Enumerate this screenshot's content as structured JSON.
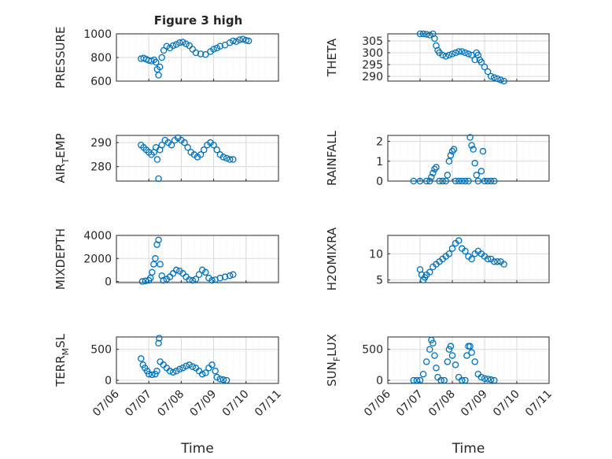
{
  "figure_title": "Figure 3 high",
  "colors": {
    "marker": "#0072BD",
    "axis": "#262626",
    "grid": "#d9d9d9",
    "minor_grid": "#ebebeb"
  },
  "chart_data": [
    {
      "type": "scatter",
      "ylabel": "PRESSURE",
      "ylim": [
        600,
        1000
      ],
      "yticks": [
        "600",
        "800",
        "1000"
      ],
      "xlim": [
        "07/06",
        "07/11"
      ],
      "xticks": [
        "07/06",
        "07/07",
        "07/08",
        "07/09",
        "07/10",
        "07/11"
      ],
      "grid": true,
      "xlabel": "",
      "points": [
        [
          0.76,
          790
        ],
        [
          0.84,
          795
        ],
        [
          0.92,
          785
        ],
        [
          1.0,
          775
        ],
        [
          1.08,
          770
        ],
        [
          1.16,
          780
        ],
        [
          1.22,
          760
        ],
        [
          1.26,
          700
        ],
        [
          1.3,
          650
        ],
        [
          1.34,
          720
        ],
        [
          1.4,
          800
        ],
        [
          1.46,
          860
        ],
        [
          1.55,
          895
        ],
        [
          1.65,
          880
        ],
        [
          1.75,
          900
        ],
        [
          1.85,
          910
        ],
        [
          1.95,
          925
        ],
        [
          2.05,
          930
        ],
        [
          2.15,
          915
        ],
        [
          2.25,
          900
        ],
        [
          2.35,
          870
        ],
        [
          2.45,
          840
        ],
        [
          2.6,
          830
        ],
        [
          2.75,
          825
        ],
        [
          2.9,
          850
        ],
        [
          3.0,
          870
        ],
        [
          3.1,
          880
        ],
        [
          3.2,
          895
        ],
        [
          3.35,
          905
        ],
        [
          3.5,
          925
        ],
        [
          3.6,
          940
        ],
        [
          3.7,
          935
        ],
        [
          3.8,
          950
        ],
        [
          3.9,
          955
        ],
        [
          4.0,
          945
        ],
        [
          4.08,
          940
        ]
      ]
    },
    {
      "type": "scatter",
      "ylabel": "THETA",
      "ylim": [
        288,
        308
      ],
      "yticks": [
        "290",
        "295",
        "300",
        "305"
      ],
      "xlim": [
        "07/06",
        "07/11"
      ],
      "xticks": [
        "07/06",
        "07/07",
        "07/08",
        "07/09",
        "07/10",
        "07/11"
      ],
      "grid": true,
      "xlabel": "",
      "points": [
        [
          1.0,
          308
        ],
        [
          1.1,
          308
        ],
        [
          1.2,
          307.8
        ],
        [
          1.3,
          307.5
        ],
        [
          1.4,
          308
        ],
        [
          1.45,
          306
        ],
        [
          1.5,
          303
        ],
        [
          1.55,
          301
        ],
        [
          1.6,
          300
        ],
        [
          1.7,
          299
        ],
        [
          1.8,
          298.5
        ],
        [
          1.9,
          299
        ],
        [
          2.0,
          299.5
        ],
        [
          2.1,
          300
        ],
        [
          2.2,
          300.5
        ],
        [
          2.3,
          300.5
        ],
        [
          2.4,
          300
        ],
        [
          2.5,
          299.5
        ],
        [
          2.6,
          299
        ],
        [
          2.7,
          297
        ],
        [
          2.75,
          300
        ],
        [
          2.8,
          299
        ],
        [
          2.85,
          297
        ],
        [
          2.9,
          296
        ],
        [
          3.0,
          294
        ],
        [
          3.1,
          292
        ],
        [
          3.2,
          290
        ],
        [
          3.3,
          289.5
        ],
        [
          3.4,
          289
        ],
        [
          3.5,
          288.5
        ],
        [
          3.6,
          288
        ]
      ]
    },
    {
      "type": "scatter",
      "ylabel": "AIR_TEMP",
      "ylim": [
        274,
        293
      ],
      "yticks": [
        "280",
        "290"
      ],
      "xlim": [
        "07/06",
        "07/11"
      ],
      "xticks": [
        "07/06",
        "07/07",
        "07/08",
        "07/09",
        "07/10",
        "07/11"
      ],
      "grid": true,
      "xlabel": "",
      "points": [
        [
          0.76,
          289
        ],
        [
          0.84,
          288
        ],
        [
          0.92,
          287
        ],
        [
          1.0,
          286
        ],
        [
          1.08,
          285
        ],
        [
          1.16,
          286
        ],
        [
          1.22,
          288
        ],
        [
          1.26,
          283
        ],
        [
          1.3,
          275
        ],
        [
          1.34,
          287
        ],
        [
          1.4,
          289
        ],
        [
          1.5,
          291
        ],
        [
          1.6,
          290
        ],
        [
          1.7,
          289
        ],
        [
          1.8,
          291
        ],
        [
          1.9,
          292
        ],
        [
          2.0,
          291
        ],
        [
          2.1,
          290
        ],
        [
          2.2,
          288
        ],
        [
          2.3,
          286
        ],
        [
          2.4,
          285
        ],
        [
          2.5,
          284
        ],
        [
          2.6,
          285
        ],
        [
          2.7,
          287
        ],
        [
          2.8,
          289
        ],
        [
          2.9,
          290
        ],
        [
          3.0,
          289
        ],
        [
          3.1,
          287
        ],
        [
          3.2,
          285
        ],
        [
          3.3,
          284
        ],
        [
          3.4,
          283.5
        ],
        [
          3.5,
          283
        ],
        [
          3.6,
          283
        ]
      ]
    },
    {
      "type": "scatter",
      "ylabel": "RAINFALL",
      "ylim": [
        0,
        2.3
      ],
      "yticks": [
        "0",
        "1",
        "2"
      ],
      "xlim": [
        "07/06",
        "07/11"
      ],
      "xticks": [
        "07/06",
        "07/07",
        "07/08",
        "07/09",
        "07/10",
        "07/11"
      ],
      "grid": true,
      "xlabel": "",
      "points": [
        [
          0.8,
          0
        ],
        [
          1.0,
          0
        ],
        [
          1.2,
          0
        ],
        [
          1.3,
          0
        ],
        [
          1.35,
          0.2
        ],
        [
          1.4,
          0.4
        ],
        [
          1.45,
          0.6
        ],
        [
          1.5,
          0.7
        ],
        [
          1.6,
          0
        ],
        [
          1.7,
          0
        ],
        [
          1.8,
          0
        ],
        [
          1.85,
          0.3
        ],
        [
          1.9,
          1.0
        ],
        [
          1.95,
          1.3
        ],
        [
          2.0,
          1.5
        ],
        [
          2.05,
          1.6
        ],
        [
          2.1,
          0
        ],
        [
          2.2,
          0
        ],
        [
          2.3,
          0
        ],
        [
          2.4,
          0
        ],
        [
          2.5,
          0
        ],
        [
          2.55,
          2.2
        ],
        [
          2.6,
          1.8
        ],
        [
          2.65,
          1.6
        ],
        [
          2.7,
          0.9
        ],
        [
          2.75,
          0.3
        ],
        [
          2.8,
          0
        ],
        [
          2.9,
          0.5
        ],
        [
          2.95,
          1.5
        ],
        [
          3.0,
          0
        ],
        [
          3.1,
          0
        ],
        [
          3.2,
          0
        ],
        [
          3.3,
          0
        ]
      ]
    },
    {
      "type": "scatter",
      "ylabel": "MIXDEPTH",
      "ylim": [
        -100,
        4000
      ],
      "yticks": [
        "0",
        "2000",
        "4000"
      ],
      "xlim": [
        "07/06",
        "07/11"
      ],
      "xticks": [
        "07/06",
        "07/07",
        "07/08",
        "07/09",
        "07/10",
        "07/11"
      ],
      "grid": true,
      "xlabel": "",
      "points": [
        [
          0.8,
          0
        ],
        [
          0.9,
          50
        ],
        [
          1.0,
          100
        ],
        [
          1.05,
          300
        ],
        [
          1.1,
          800
        ],
        [
          1.15,
          1500
        ],
        [
          1.2,
          2000
        ],
        [
          1.25,
          3200
        ],
        [
          1.3,
          3600
        ],
        [
          1.35,
          1500
        ],
        [
          1.4,
          500
        ],
        [
          1.45,
          100
        ],
        [
          1.55,
          200
        ],
        [
          1.65,
          400
        ],
        [
          1.75,
          700
        ],
        [
          1.85,
          1000
        ],
        [
          1.95,
          900
        ],
        [
          2.05,
          700
        ],
        [
          2.15,
          400
        ],
        [
          2.25,
          150
        ],
        [
          2.35,
          100
        ],
        [
          2.45,
          200
        ],
        [
          2.55,
          600
        ],
        [
          2.65,
          1000
        ],
        [
          2.75,
          800
        ],
        [
          2.85,
          300
        ],
        [
          2.95,
          100
        ],
        [
          3.05,
          150
        ],
        [
          3.2,
          300
        ],
        [
          3.35,
          400
        ],
        [
          3.5,
          500
        ],
        [
          3.6,
          600
        ]
      ]
    },
    {
      "type": "scatter",
      "ylabel": "H2OMIXRA",
      "ylim": [
        4.5,
        13.5
      ],
      "yticks": [
        "5",
        "10"
      ],
      "xlim": [
        "07/06",
        "07/11"
      ],
      "xticks": [
        "07/06",
        "07/07",
        "07/08",
        "07/09",
        "07/10",
        "07/11"
      ],
      "grid": true,
      "xlabel": "",
      "points": [
        [
          1.0,
          7
        ],
        [
          1.05,
          6
        ],
        [
          1.1,
          5
        ],
        [
          1.15,
          5.5
        ],
        [
          1.2,
          6
        ],
        [
          1.3,
          6.5
        ],
        [
          1.4,
          7.5
        ],
        [
          1.5,
          8
        ],
        [
          1.6,
          8.5
        ],
        [
          1.7,
          9
        ],
        [
          1.8,
          9.5
        ],
        [
          1.9,
          10
        ],
        [
          2.0,
          11
        ],
        [
          2.1,
          12
        ],
        [
          2.2,
          12.5
        ],
        [
          2.3,
          11
        ],
        [
          2.4,
          10.5
        ],
        [
          2.5,
          9.5
        ],
        [
          2.6,
          9
        ],
        [
          2.7,
          10
        ],
        [
          2.8,
          10.5
        ],
        [
          2.9,
          10
        ],
        [
          3.0,
          9.5
        ],
        [
          3.1,
          9
        ],
        [
          3.2,
          9
        ],
        [
          3.3,
          8.5
        ],
        [
          3.4,
          8.5
        ],
        [
          3.5,
          8.5
        ],
        [
          3.6,
          8
        ]
      ]
    },
    {
      "type": "scatter",
      "ylabel": "TERR_MSL",
      "ylim": [
        -50,
        700
      ],
      "yticks": [
        "0",
        "500"
      ],
      "xlim": [
        "07/06",
        "07/11"
      ],
      "xticks": [
        "07/06",
        "07/07",
        "07/08",
        "07/09",
        "07/10",
        "07/11"
      ],
      "grid": true,
      "xlabel": "Time",
      "points": [
        [
          0.76,
          350
        ],
        [
          0.82,
          250
        ],
        [
          0.88,
          200
        ],
        [
          0.95,
          150
        ],
        [
          1.0,
          100
        ],
        [
          1.1,
          90
        ],
        [
          1.2,
          100
        ],
        [
          1.25,
          150
        ],
        [
          1.3,
          600
        ],
        [
          1.32,
          680
        ],
        [
          1.35,
          300
        ],
        [
          1.45,
          250
        ],
        [
          1.55,
          200
        ],
        [
          1.65,
          150
        ],
        [
          1.75,
          130
        ],
        [
          1.85,
          150
        ],
        [
          1.95,
          180
        ],
        [
          2.05,
          200
        ],
        [
          2.15,
          230
        ],
        [
          2.25,
          250
        ],
        [
          2.35,
          220
        ],
        [
          2.45,
          200
        ],
        [
          2.55,
          150
        ],
        [
          2.65,
          100
        ],
        [
          2.75,
          120
        ],
        [
          2.85,
          200
        ],
        [
          2.95,
          250
        ],
        [
          3.05,
          150
        ],
        [
          3.1,
          50
        ],
        [
          3.2,
          20
        ],
        [
          3.3,
          10
        ],
        [
          3.4,
          0
        ]
      ]
    },
    {
      "type": "scatter",
      "ylabel": "SUN_FLUX",
      "ylim": [
        -50,
        700
      ],
      "yticks": [
        "0",
        "500"
      ],
      "xlim": [
        "07/06",
        "07/11"
      ],
      "xticks": [
        "07/06",
        "07/07",
        "07/08",
        "07/09",
        "07/10",
        "07/11"
      ],
      "grid": true,
      "xlabel": "Time",
      "points": [
        [
          0.8,
          0
        ],
        [
          0.9,
          0
        ],
        [
          1.0,
          0
        ],
        [
          1.1,
          100
        ],
        [
          1.2,
          300
        ],
        [
          1.3,
          500
        ],
        [
          1.35,
          650
        ],
        [
          1.4,
          600
        ],
        [
          1.45,
          400
        ],
        [
          1.5,
          200
        ],
        [
          1.55,
          50
        ],
        [
          1.65,
          0
        ],
        [
          1.75,
          0
        ],
        [
          1.85,
          300
        ],
        [
          1.9,
          500
        ],
        [
          1.95,
          550
        ],
        [
          2.0,
          400
        ],
        [
          2.1,
          250
        ],
        [
          2.2,
          50
        ],
        [
          2.3,
          0
        ],
        [
          2.4,
          0
        ],
        [
          2.45,
          400
        ],
        [
          2.5,
          550
        ],
        [
          2.55,
          550
        ],
        [
          2.6,
          450
        ],
        [
          2.7,
          300
        ],
        [
          2.8,
          100
        ],
        [
          2.9,
          50
        ],
        [
          3.0,
          30
        ],
        [
          3.1,
          20
        ],
        [
          3.2,
          10
        ],
        [
          3.3,
          0
        ]
      ]
    }
  ]
}
